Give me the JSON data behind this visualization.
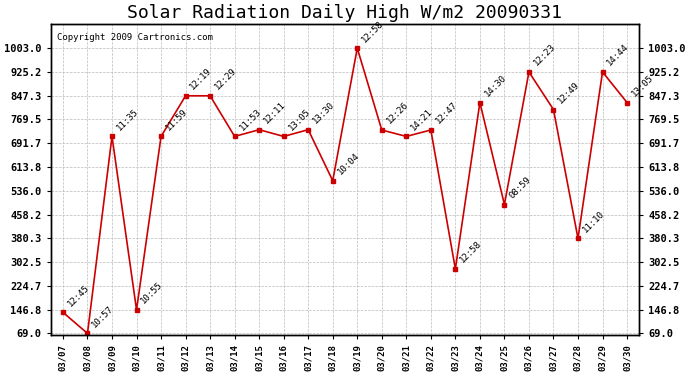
{
  "title": "Solar Radiation Daily High W/m2 20090331",
  "copyright": "Copyright 2009 Cartronics.com",
  "dates": [
    "03/07",
    "03/08",
    "03/09",
    "03/10",
    "03/11",
    "03/12",
    "03/13",
    "03/14",
    "03/15",
    "03/16",
    "03/17",
    "03/18",
    "03/19",
    "03/20",
    "03/21",
    "03/22",
    "03/23",
    "03/24",
    "03/25",
    "03/26",
    "03/27",
    "03/28",
    "03/29",
    "03/30"
  ],
  "values": [
    138,
    69,
    714,
    146,
    714,
    847,
    847,
    714,
    736,
    714,
    736,
    569,
    1003,
    735,
    714,
    735,
    280,
    825,
    491,
    925,
    802,
    380,
    925,
    825
  ],
  "times": [
    "12:45",
    "10:57",
    "11:35",
    "10:55",
    "11:59",
    "12:19",
    "12:29",
    "11:53",
    "12:11",
    "13:05",
    "13:30",
    "10:04",
    "12:58",
    "12:26",
    "14:21",
    "12:47",
    "12:58",
    "14:30",
    "08:59",
    "12:23",
    "12:49",
    "11:10",
    "14:44",
    "13:05"
  ],
  "ymin": 69.0,
  "ymax": 1003.0,
  "yticks": [
    69.0,
    146.8,
    224.7,
    302.5,
    380.3,
    458.2,
    536.0,
    613.8,
    691.7,
    769.5,
    847.3,
    925.2,
    1003.0
  ],
  "line_color": "#cc0000",
  "marker_color": "#cc0000",
  "bg_color": "#ffffff",
  "grid_color": "#bbbbbb",
  "title_fontsize": 13,
  "label_fontsize": 6.5,
  "copyright_fontsize": 6.5,
  "annotation_fontsize": 6.5
}
